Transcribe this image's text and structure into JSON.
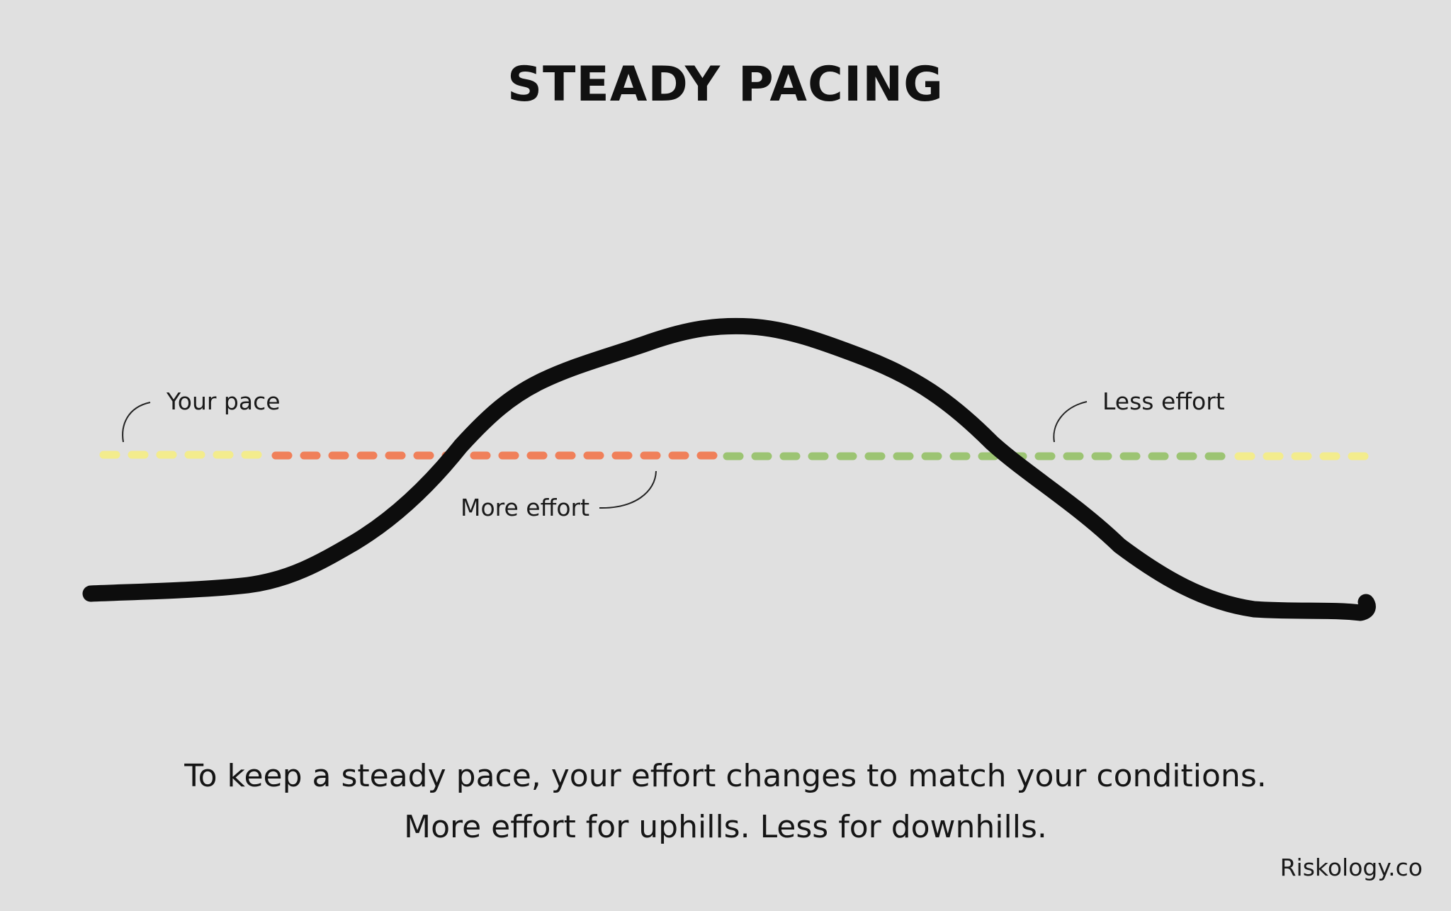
{
  "title": "STEADY PACING",
  "labels": {
    "your_pace": "Your pace",
    "more_effort": "More effort",
    "less_effort": "Less effort"
  },
  "caption": {
    "line1": "To keep a steady pace, your effort changes to match your conditions.",
    "line2": "More effort for uphills. Less for downhills."
  },
  "credit": "Riskology.co",
  "colors": {
    "background": "#e0e0e0",
    "terrain": "#0d0d0d",
    "pace_line_flat": "#f3ec8d",
    "pace_line_uphill": "#f0805a",
    "pace_line_downhill": "#9cc473"
  }
}
